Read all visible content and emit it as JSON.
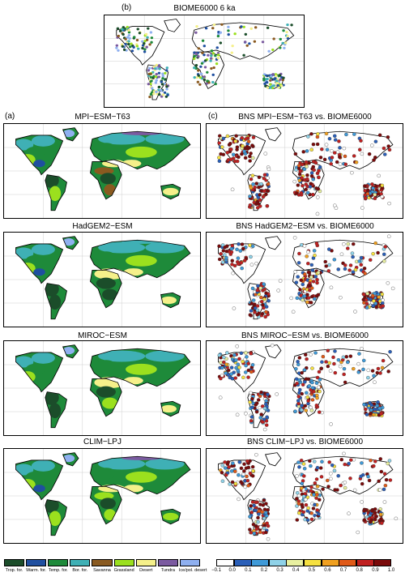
{
  "panel_b": {
    "letter": "(b)",
    "title": "BIOME6000 6 ka"
  },
  "panel_a": {
    "letter": "(a)"
  },
  "panel_c": {
    "letter": "(c)"
  },
  "models": [
    {
      "title": "MPI−ESM−T63",
      "bns_title": "BNS MPI−ESM−T63 vs. BIOME6000"
    },
    {
      "title": "HadGEM2−ESM",
      "bns_title": "BNS HadGEM2−ESM vs. BIOME6000"
    },
    {
      "title": "MIROC−ESM",
      "bns_title": "BNS MIROC−ESM vs. BIOME6000"
    },
    {
      "title": "CLIM−LPJ",
      "bns_title": "BNS CLIM−LPJ vs. BIOME6000"
    }
  ],
  "biome_legend": [
    {
      "label": "Trop. for.",
      "color": "#1b4d2a"
    },
    {
      "label": "Warm. for.",
      "color": "#1f4fa0"
    },
    {
      "label": "Temp. for.",
      "color": "#1e8a3a"
    },
    {
      "label": "Bor. for.",
      "color": "#3fb0b5"
    },
    {
      "label": "Savanna",
      "color": "#8a5a20"
    },
    {
      "label": "Grassland",
      "color": "#9be01e"
    },
    {
      "label": "Desert",
      "color": "#f5f08a"
    },
    {
      "label": "Tundra",
      "color": "#7b5aa0"
    },
    {
      "label": "Ice/pol. desert",
      "color": "#8fb0f0"
    }
  ],
  "bns_colorbar": {
    "colors": [
      "#ffffff",
      "#2a5fb8",
      "#3f9ad8",
      "#8fd2e8",
      "#e8f0a0",
      "#f5e040",
      "#f0a020",
      "#e05a18",
      "#c02020",
      "#7a0a0a"
    ],
    "ticks": [
      "−0.1",
      "0.0",
      "0.1",
      "0.2",
      "0.3",
      "0.4",
      "0.5",
      "0.6",
      "0.7",
      "0.8",
      "0.9",
      "1.0"
    ]
  }
}
